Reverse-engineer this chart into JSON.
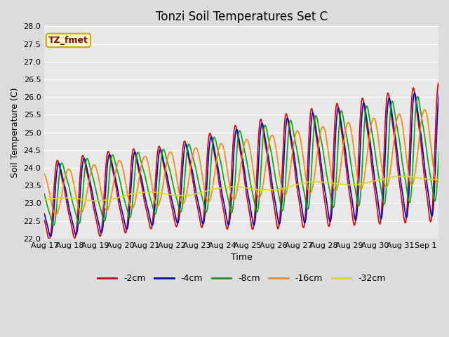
{
  "title": "Tonzi Soil Temperatures Set C",
  "xlabel": "Time",
  "ylabel": "Soil Temperature (C)",
  "ylim": [
    22.0,
    28.0
  ],
  "yticks": [
    22.0,
    22.5,
    23.0,
    23.5,
    24.0,
    24.5,
    25.0,
    25.5,
    26.0,
    26.5,
    27.0,
    27.5,
    28.0
  ],
  "annotation_label": "TZ_fmet",
  "annotation_color": "#8B0000",
  "annotation_bg": "#FFFFCC",
  "annotation_border": "#CCAA00",
  "series": [
    {
      "label": "-2cm",
      "color": "#DD0000",
      "lw": 1.2
    },
    {
      "label": "-4cm",
      "color": "#0000CC",
      "lw": 1.2
    },
    {
      "label": "-8cm",
      "color": "#00AA00",
      "lw": 1.2
    },
    {
      "label": "-16cm",
      "color": "#FF8800",
      "lw": 1.2
    },
    {
      "label": "-32cm",
      "color": "#DDDD00",
      "lw": 1.2
    }
  ],
  "background_color": "#DCDCDC",
  "plot_bg": "#E8E8E8",
  "title_fontsize": 12,
  "axis_label_fontsize": 9,
  "tick_fontsize": 8
}
